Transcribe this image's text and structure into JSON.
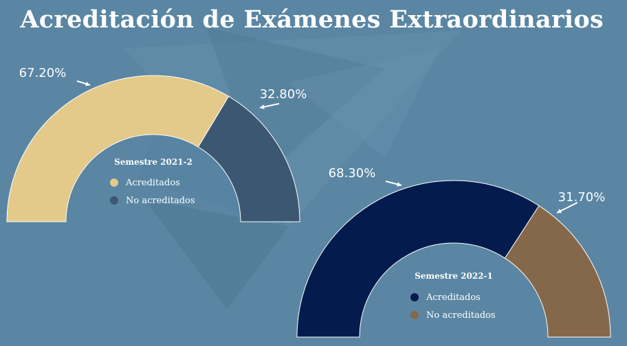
{
  "title": "Acreditación de Exámenes Extraordinarios",
  "colors": {
    "background": "#5a86a3",
    "acreditados_2021_2": "#e3c98a",
    "no_acreditados_2021_2": "#3c5771",
    "acreditados_2022_1": "#031c4d",
    "no_acreditados_2022_1": "#856849"
  },
  "chart_data": [
    {
      "type": "pie",
      "title": "Semestre 2021-2",
      "categories": [
        "Acreditados",
        "No acreditados"
      ],
      "values": [
        67.2,
        32.8
      ],
      "data_labels": [
        "67.20%",
        "32.80%"
      ],
      "colors": [
        "#e3c98a",
        "#3c5771"
      ],
      "legend": "center"
    },
    {
      "type": "pie",
      "title": "Semestre 2022-1",
      "categories": [
        "Acreditados",
        "No acreditados"
      ],
      "values": [
        68.3,
        31.7
      ],
      "data_labels": [
        "68.30%",
        "31.70%"
      ],
      "colors": [
        "#031c4d",
        "#856849"
      ],
      "legend": "center"
    }
  ]
}
